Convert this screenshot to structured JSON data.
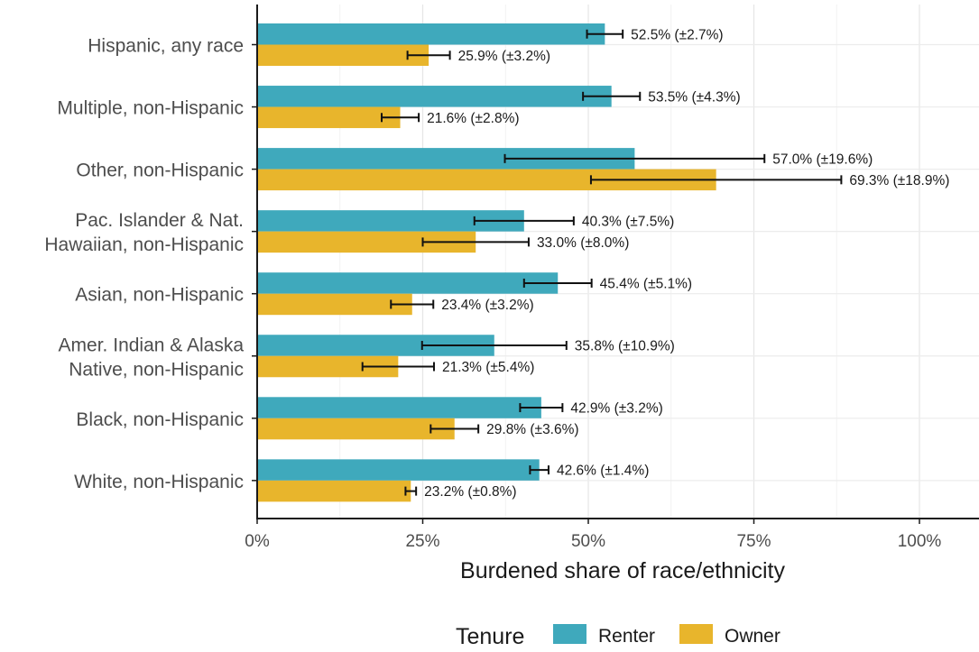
{
  "chart_data": {
    "type": "bar",
    "orientation": "horizontal",
    "categories": [
      [
        "Hispanic, any race"
      ],
      [
        "Multiple, non-Hispanic"
      ],
      [
        "Other, non-Hispanic"
      ],
      [
        "Pac. Islander & Nat.",
        "Hawaiian, non-Hispanic"
      ],
      [
        "Asian, non-Hispanic"
      ],
      [
        "Amer. Indian & Alaska",
        "Native, non-Hispanic"
      ],
      [
        "Black, non-Hispanic"
      ],
      [
        "White, non-Hispanic"
      ]
    ],
    "series": [
      {
        "name": "Renter",
        "color": "#3fa9bc",
        "values": [
          52.5,
          53.5,
          57.0,
          40.3,
          45.4,
          35.8,
          42.9,
          42.6
        ],
        "errors": [
          2.7,
          4.3,
          19.6,
          7.5,
          5.1,
          10.9,
          3.2,
          1.4
        ],
        "labels": [
          "52.5% (±2.7%)",
          "53.5% (±4.3%)",
          "57.0% (±19.6%)",
          "40.3% (±7.5%)",
          "45.4% (±5.1%)",
          "35.8% (±10.9%)",
          "42.9% (±3.2%)",
          "42.6% (±1.4%)"
        ]
      },
      {
        "name": "Owner",
        "color": "#e8b52c",
        "values": [
          25.9,
          21.6,
          69.3,
          33.0,
          23.4,
          21.3,
          29.8,
          23.2
        ],
        "errors": [
          3.2,
          2.8,
          18.9,
          8.0,
          3.2,
          5.4,
          3.6,
          0.8
        ],
        "labels": [
          "25.9% (±3.2%)",
          "21.6% (±2.8%)",
          "69.3% (±18.9%)",
          "33.0% (±8.0%)",
          "23.4% (±3.2%)",
          "21.3% (±5.4%)",
          "29.8% (±3.6%)",
          "23.2% (±0.8%)"
        ]
      }
    ],
    "xlabel": "Burdened share of race/ethnicity",
    "xlim": [
      0,
      109
    ],
    "xticks": [
      0,
      25,
      50,
      75,
      100
    ],
    "xtick_labels": [
      "0%",
      "25%",
      "50%",
      "75%",
      "100%"
    ],
    "grid": true,
    "legend": {
      "title": "Tenure",
      "placement": "bottom"
    }
  }
}
